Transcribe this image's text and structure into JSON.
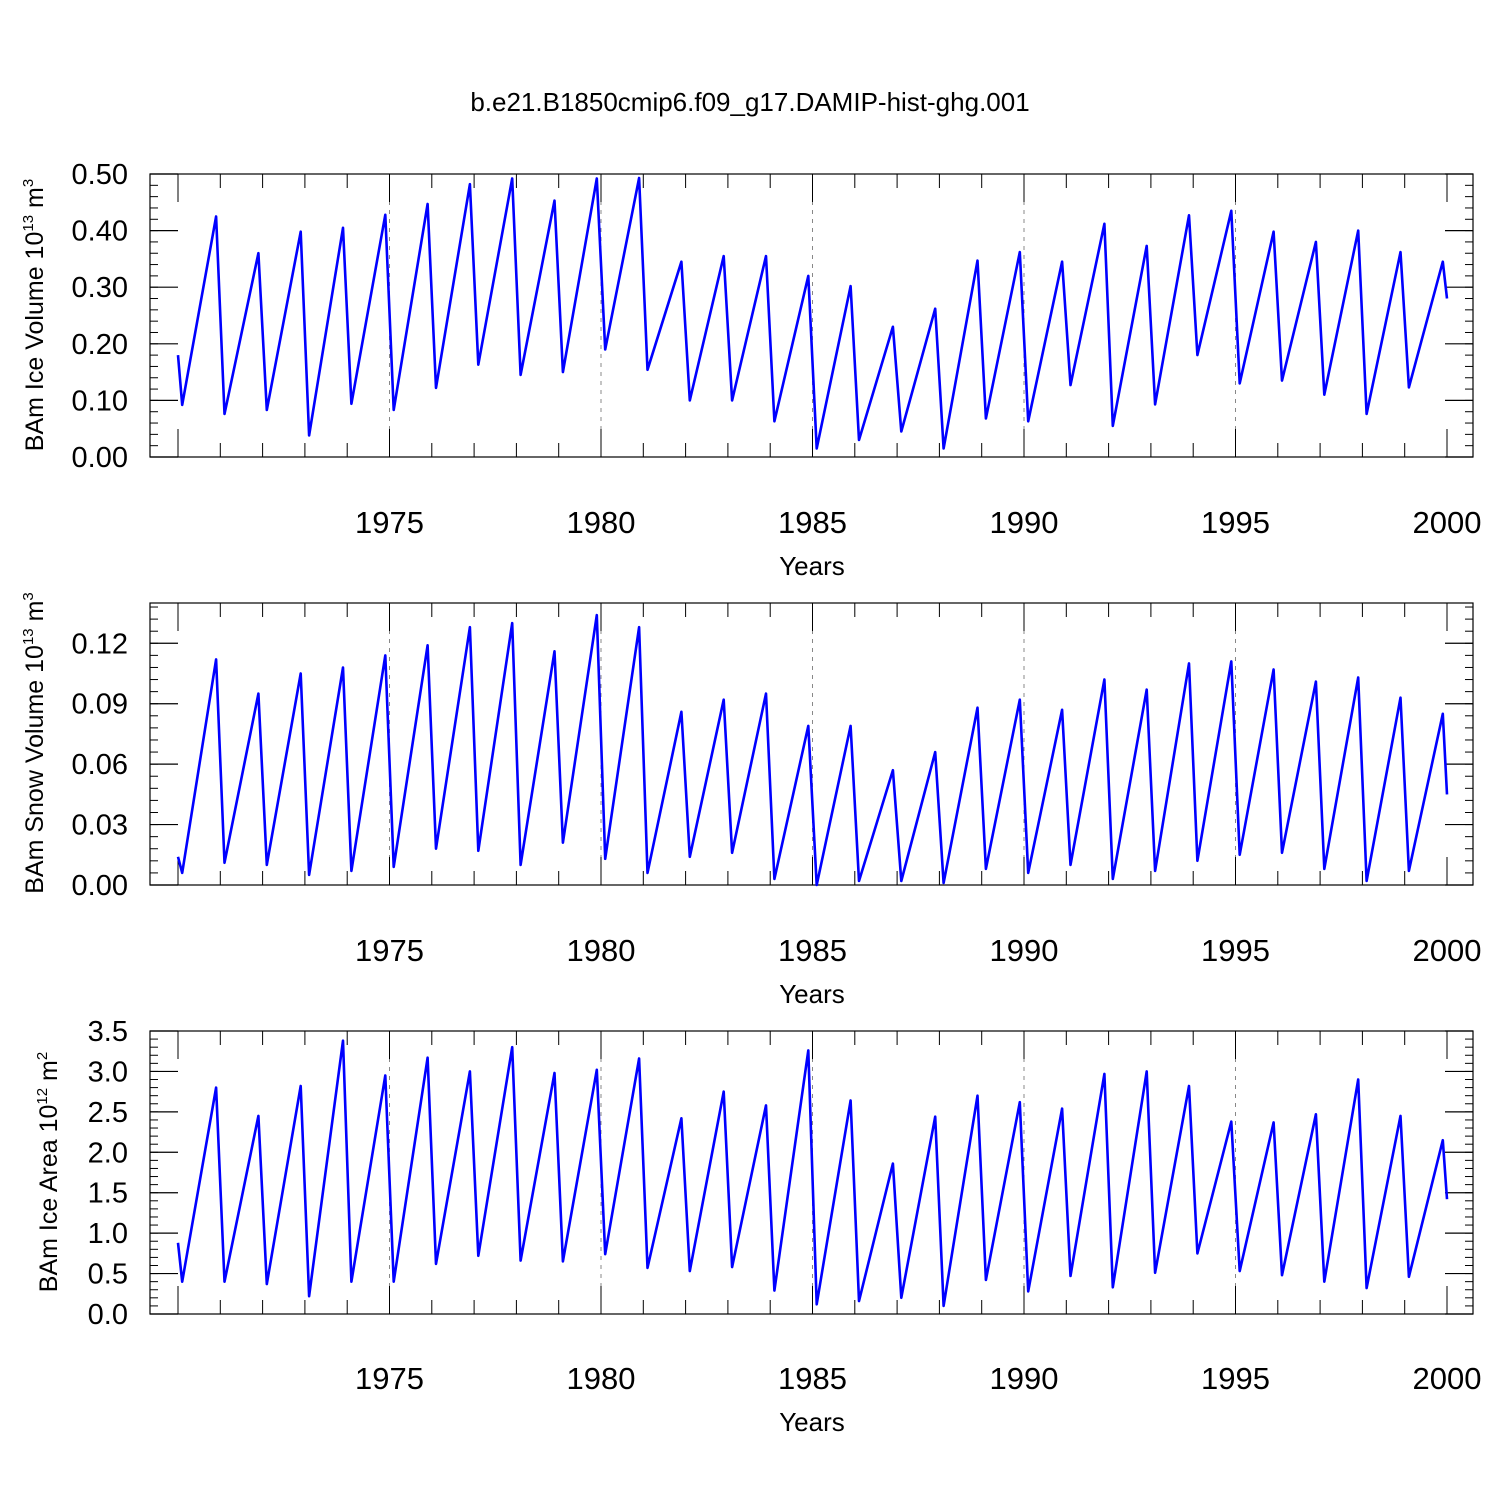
{
  "figure_title": "b.e21.B1850cmip6.f09_g17.DAMIP-hist-ghg.001",
  "colors": {
    "series": "#0000ff",
    "axes": "#000000",
    "grid": "#888888"
  },
  "chart_data": [
    {
      "type": "line",
      "ylabel_text": "BAm Ice Volume 10",
      "ylabel_exp": "13",
      "ylabel_unit": " m",
      "ylabel_unit_exp": "3",
      "xlabel": "Years",
      "xlim": [
        1970,
        2000
      ],
      "ylim": [
        0,
        0.5
      ],
      "yticks": [
        0,
        0.1,
        0.2,
        0.3,
        0.4,
        0.5
      ],
      "ytick_labels": [
        "0.00",
        "0.10",
        "0.20",
        "0.30",
        "0.40",
        "0.50"
      ],
      "xticks": [
        1975,
        1980,
        1985,
        1990,
        1995,
        2000
      ],
      "xtick_labels": [
        "1975",
        "1980",
        "1985",
        "1990",
        "1995",
        "2000"
      ],
      "grid": "dashed vertical lines at 5-year intervals",
      "series_name": "BAm Ice Volume",
      "annual_max": [
        0.425,
        0.36,
        0.398,
        0.405,
        0.428,
        0.447,
        0.482,
        0.492,
        0.453,
        0.492,
        0.493,
        0.345,
        0.355,
        0.355,
        0.32,
        0.302,
        0.23,
        0.262,
        0.347,
        0.362,
        0.345,
        0.412,
        0.373,
        0.427,
        0.435,
        0.398,
        0.38,
        0.4,
        0.362,
        0.345
      ],
      "annual_min": [
        0.092,
        0.076,
        0.083,
        0.038,
        0.094,
        0.083,
        0.122,
        0.163,
        0.145,
        0.15,
        0.19,
        0.154,
        0.1,
        0.1,
        0.063,
        0.015,
        0.03,
        0.045,
        0.015,
        0.068,
        0.063,
        0.127,
        0.055,
        0.093,
        0.18,
        0.13,
        0.135,
        0.11,
        0.076,
        0.123
      ],
      "start_value": 0.18,
      "end_value": 0.28
    },
    {
      "type": "line",
      "ylabel_text": "BAm Snow Volume 10",
      "ylabel_exp": "13",
      "ylabel_unit": " m",
      "ylabel_unit_exp": "3",
      "xlabel": "Years",
      "xlim": [
        1970,
        2000
      ],
      "ylim": [
        0,
        0.14
      ],
      "yticks": [
        0,
        0.03,
        0.06,
        0.09,
        0.12
      ],
      "ytick_labels": [
        "0.00",
        "0.03",
        "0.06",
        "0.09",
        "0.12"
      ],
      "xticks": [
        1975,
        1980,
        1985,
        1990,
        1995,
        2000
      ],
      "xtick_labels": [
        "1975",
        "1980",
        "1985",
        "1990",
        "1995",
        "2000"
      ],
      "grid": "dashed vertical lines at 5-year intervals",
      "series_name": "BAm Snow Volume",
      "annual_max": [
        0.112,
        0.095,
        0.105,
        0.108,
        0.114,
        0.119,
        0.128,
        0.13,
        0.116,
        0.134,
        0.128,
        0.086,
        0.092,
        0.095,
        0.079,
        0.079,
        0.057,
        0.066,
        0.088,
        0.092,
        0.087,
        0.102,
        0.097,
        0.11,
        0.111,
        0.107,
        0.101,
        0.103,
        0.093,
        0.085
      ],
      "annual_min": [
        0.006,
        0.011,
        0.01,
        0.005,
        0.007,
        0.009,
        0.018,
        0.017,
        0.01,
        0.021,
        0.013,
        0.006,
        0.014,
        0.016,
        0.003,
        0.0,
        0.002,
        0.002,
        0.001,
        0.008,
        0.006,
        0.01,
        0.003,
        0.007,
        0.012,
        0.015,
        0.016,
        0.008,
        0.002,
        0.007
      ],
      "start_value": 0.014,
      "end_value": 0.045
    },
    {
      "type": "line",
      "ylabel_text": "BAm Ice Area 10",
      "ylabel_exp": "12",
      "ylabel_unit": " m",
      "ylabel_unit_exp": "2",
      "xlabel": "Years",
      "xlim": [
        1970,
        2000
      ],
      "ylim": [
        0,
        3.5
      ],
      "yticks": [
        0,
        0.5,
        1,
        1.5,
        2,
        2.5,
        3,
        3.5
      ],
      "ytick_labels": [
        "0.0",
        "0.5",
        "1.0",
        "1.5",
        "2.0",
        "2.5",
        "3.0",
        "3.5"
      ],
      "xticks": [
        1975,
        1980,
        1985,
        1990,
        1995,
        2000
      ],
      "xtick_labels": [
        "1975",
        "1980",
        "1985",
        "1990",
        "1995",
        "2000"
      ],
      "grid": "dashed vertical lines at 5-year intervals",
      "series_name": "BAm Ice Area",
      "annual_max": [
        2.8,
        2.45,
        2.82,
        3.38,
        2.95,
        3.17,
        3.0,
        3.3,
        2.98,
        3.02,
        3.16,
        2.42,
        2.75,
        2.58,
        3.26,
        2.64,
        1.86,
        2.44,
        2.7,
        2.62,
        2.54,
        2.97,
        3.0,
        2.82,
        2.38,
        2.37,
        2.47,
        2.9,
        2.45,
        2.15
      ],
      "annual_min": [
        0.4,
        0.4,
        0.37,
        0.22,
        0.4,
        0.4,
        0.62,
        0.72,
        0.66,
        0.65,
        0.74,
        0.57,
        0.53,
        0.58,
        0.29,
        0.12,
        0.16,
        0.2,
        0.1,
        0.42,
        0.28,
        0.47,
        0.33,
        0.51,
        0.75,
        0.53,
        0.48,
        0.4,
        0.32,
        0.46
      ],
      "start_value": 0.88,
      "end_value": 1.42
    }
  ]
}
